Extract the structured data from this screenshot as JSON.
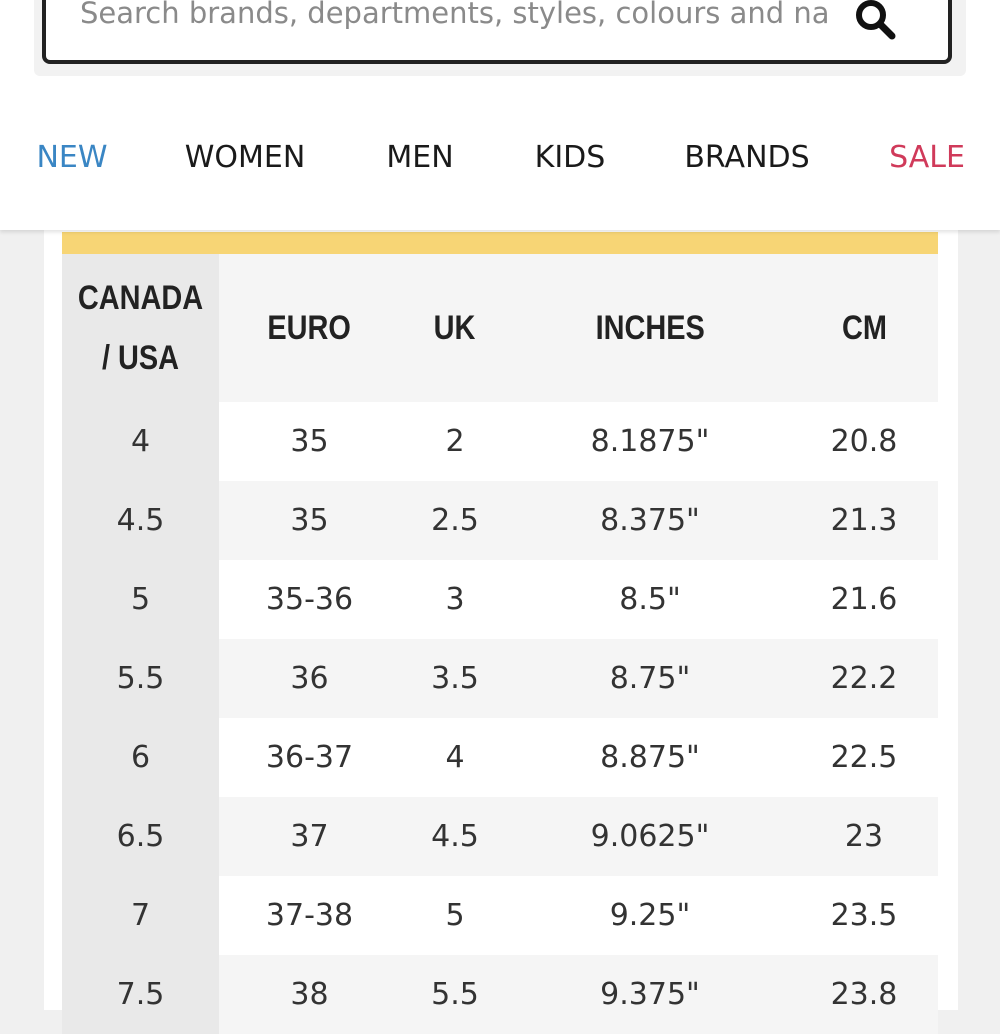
{
  "search": {
    "placeholder": "Search brands, departments, styles, colours and na"
  },
  "nav": [
    "NEW",
    "WOMEN",
    "MEN",
    "KIDS",
    "BRANDS",
    "SALE"
  ],
  "table": {
    "header": [
      "CANADA / USA",
      "EURO",
      "UK",
      "INCHES",
      "CM"
    ],
    "rows": [
      [
        "4",
        "35",
        "2",
        "8.1875\"",
        "20.8"
      ],
      [
        "4.5",
        "35",
        "2.5",
        "8.375\"",
        "21.3"
      ],
      [
        "5",
        "35-36",
        "3",
        "8.5\"",
        "21.6"
      ],
      [
        "5.5",
        "36",
        "3.5",
        "8.75\"",
        "22.2"
      ],
      [
        "6",
        "36-37",
        "4",
        "8.875\"",
        "22.5"
      ],
      [
        "6.5",
        "37",
        "4.5",
        "9.0625\"",
        "23"
      ],
      [
        "7",
        "37-38",
        "5",
        "9.25\"",
        "23.5"
      ],
      [
        "7.5",
        "38",
        "5.5",
        "9.375\"",
        "23.8"
      ]
    ]
  }
}
